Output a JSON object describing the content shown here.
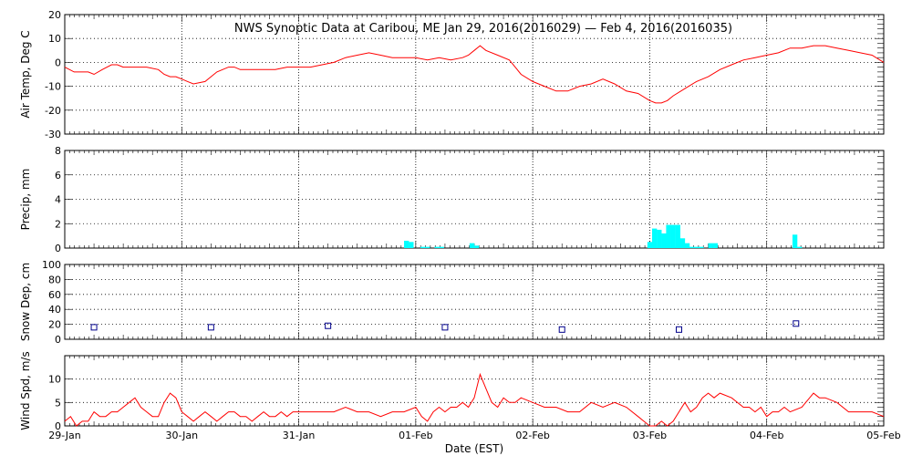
{
  "title": "NWS Synoptic Data at Caribou, ME   Jan 29, 2016(2016029) — Feb  4, 2016(2016035)",
  "xlabel": "Date (EST)",
  "x_tick_labels": [
    "29-Jan",
    "30-Jan",
    "31-Jan",
    "01-Feb",
    "02-Feb",
    "03-Feb",
    "04-Feb",
    "05-Feb"
  ],
  "colors": {
    "temp": "#ff0000",
    "precip": "#00ffff",
    "snow": "#00008b",
    "wind": "#ff0000"
  },
  "chart_data": [
    {
      "type": "line",
      "ylabel": "Air Temp, Deg C",
      "xlim": [
        0,
        7
      ],
      "ylim": [
        -30,
        20
      ],
      "y_ticks": [
        -30,
        -20,
        -10,
        0,
        10,
        20
      ],
      "x_unit": "days since 29-Jan 00:00",
      "x": [
        0,
        0.08,
        0.2,
        0.25,
        0.32,
        0.4,
        0.45,
        0.5,
        0.6,
        0.7,
        0.8,
        0.85,
        0.9,
        0.95,
        1.0,
        1.05,
        1.1,
        1.2,
        1.3,
        1.4,
        1.45,
        1.5,
        1.6,
        1.7,
        1.8,
        1.9,
        2.0,
        2.1,
        2.2,
        2.3,
        2.4,
        2.5,
        2.6,
        2.7,
        2.8,
        2.9,
        3.0,
        3.1,
        3.2,
        3.3,
        3.4,
        3.45,
        3.5,
        3.55,
        3.6,
        3.7,
        3.8,
        3.85,
        3.9,
        4.0,
        4.1,
        4.2,
        4.3,
        4.4,
        4.5,
        4.6,
        4.7,
        4.8,
        4.9,
        5.0,
        5.05,
        5.1,
        5.15,
        5.2,
        5.3,
        5.4,
        5.5,
        5.6,
        5.7,
        5.8,
        5.9,
        6.0,
        6.1,
        6.2,
        6.3,
        6.4,
        6.5,
        6.6,
        6.7,
        6.8,
        6.9,
        7.0
      ],
      "y": [
        -2,
        -4,
        -4,
        -5,
        -3,
        -1,
        -1,
        -2,
        -2,
        -2,
        -3,
        -5,
        -6,
        -6,
        -7,
        -8,
        -9,
        -8,
        -4,
        -2,
        -2,
        -3,
        -3,
        -3,
        -3,
        -2,
        -2,
        -2,
        -1,
        0,
        2,
        3,
        4,
        3,
        2,
        2,
        2,
        1,
        2,
        1,
        2,
        3,
        5,
        7,
        5,
        3,
        1,
        -2,
        -5,
        -8,
        -10,
        -12,
        -12,
        -10,
        -9,
        -7,
        -9,
        -12,
        -13,
        -16,
        -17,
        -17,
        -16,
        -14,
        -11,
        -8,
        -6,
        -3,
        -1,
        1,
        2,
        3,
        4,
        6,
        6,
        7,
        7,
        6,
        5,
        4,
        3,
        0
      ]
    },
    {
      "type": "bar",
      "ylabel": "Precip, mm",
      "xlim": [
        0,
        7
      ],
      "ylim": [
        0,
        8
      ],
      "y_ticks": [
        0,
        2,
        4,
        6,
        8
      ],
      "x_unit": "days since 29-Jan 00:00",
      "bin_width_days": 0.0417,
      "x": [
        2.9,
        2.94,
        3.04,
        3.08,
        3.16,
        3.2,
        3.46,
        3.5,
        4.98,
        5.02,
        5.06,
        5.1,
        5.14,
        5.18,
        5.22,
        5.26,
        5.3,
        5.34,
        5.38,
        5.42,
        5.5,
        5.54,
        5.58,
        6.22,
        6.26
      ],
      "values": [
        0.6,
        0.5,
        0.1,
        0.1,
        0.1,
        0.1,
        0.4,
        0.2,
        0.5,
        1.6,
        1.5,
        1.2,
        1.9,
        1.9,
        1.9,
        0.8,
        0.4,
        0.1,
        0.1,
        0.1,
        0.4,
        0.4,
        0.0,
        1.1,
        0.1
      ]
    },
    {
      "type": "scatter",
      "ylabel": "Snow Dep, cm",
      "xlim": [
        0,
        7
      ],
      "ylim": [
        0,
        100
      ],
      "y_ticks": [
        0,
        20,
        40,
        60,
        80,
        100
      ],
      "x_unit": "days since 29-Jan 00:00",
      "x": [
        0.25,
        1.25,
        2.25,
        3.25,
        4.25,
        5.25,
        6.25
      ],
      "y": [
        16,
        16,
        18,
        16,
        13,
        13,
        21
      ]
    },
    {
      "type": "line",
      "ylabel": "Wind Spd, m/s",
      "xlim": [
        0,
        7
      ],
      "ylim": [
        0,
        15
      ],
      "y_ticks": [
        0,
        5,
        10
      ],
      "x_unit": "days since 29-Jan 00:00",
      "x": [
        0,
        0.05,
        0.1,
        0.15,
        0.2,
        0.25,
        0.3,
        0.35,
        0.4,
        0.45,
        0.5,
        0.55,
        0.6,
        0.65,
        0.7,
        0.75,
        0.8,
        0.85,
        0.9,
        0.95,
        1.0,
        1.05,
        1.1,
        1.15,
        1.2,
        1.25,
        1.3,
        1.35,
        1.4,
        1.45,
        1.5,
        1.55,
        1.6,
        1.65,
        1.7,
        1.75,
        1.8,
        1.85,
        1.9,
        1.95,
        2.0,
        2.1,
        2.2,
        2.3,
        2.4,
        2.5,
        2.6,
        2.7,
        2.8,
        2.9,
        3.0,
        3.05,
        3.1,
        3.15,
        3.2,
        3.25,
        3.3,
        3.35,
        3.4,
        3.45,
        3.5,
        3.55,
        3.6,
        3.65,
        3.7,
        3.75,
        3.8,
        3.85,
        3.9,
        4.0,
        4.1,
        4.2,
        4.3,
        4.4,
        4.5,
        4.6,
        4.7,
        4.8,
        4.9,
        4.95,
        5.0,
        5.05,
        5.1,
        5.15,
        5.2,
        5.25,
        5.3,
        5.35,
        5.4,
        5.45,
        5.5,
        5.55,
        5.6,
        5.7,
        5.8,
        5.85,
        5.9,
        5.95,
        6.0,
        6.05,
        6.1,
        6.15,
        6.2,
        6.3,
        6.4,
        6.45,
        6.5,
        6.6,
        6.7,
        6.8,
        6.9,
        7.0
      ],
      "y": [
        1,
        2,
        0,
        1,
        1,
        3,
        2,
        2,
        3,
        3,
        4,
        5,
        6,
        4,
        3,
        2,
        2,
        5,
        7,
        6,
        3,
        2,
        1,
        2,
        3,
        2,
        1,
        2,
        3,
        3,
        2,
        2,
        1,
        2,
        3,
        2,
        2,
        3,
        2,
        3,
        3,
        3,
        3,
        3,
        4,
        3,
        3,
        2,
        3,
        3,
        4,
        2,
        1,
        3,
        4,
        3,
        4,
        4,
        5,
        4,
        6,
        11,
        8,
        5,
        4,
        6,
        5,
        5,
        6,
        5,
        4,
        4,
        3,
        3,
        5,
        4,
        5,
        4,
        2,
        1,
        0,
        0,
        1,
        0,
        1,
        3,
        5,
        3,
        4,
        6,
        7,
        6,
        7,
        6,
        4,
        4,
        3,
        4,
        2,
        3,
        3,
        4,
        3,
        4,
        7,
        6,
        6,
        5,
        3,
        3,
        3,
        2
      ]
    }
  ]
}
